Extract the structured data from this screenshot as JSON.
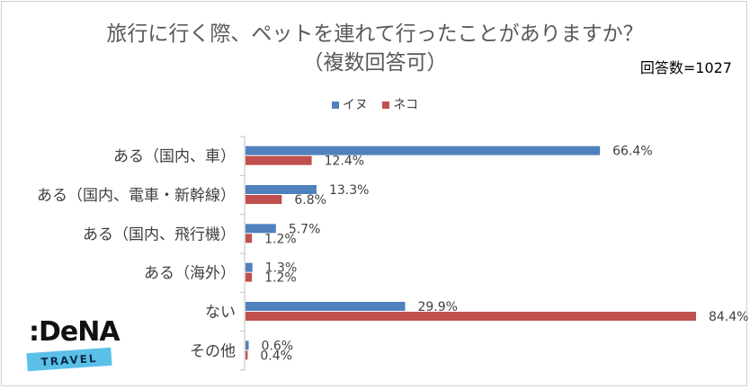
{
  "title_line1": "旅行に行く際、ペットを連れて行ったことがありますか？",
  "title_line2": "（複数回答可）",
  "note": "回答数=1027",
  "logo_text": "DeNA",
  "logo_band": "TRAVEL",
  "colors": {
    "dog": "#4f81bd",
    "cat": "#c0504d",
    "axis": "#bfbfbf"
  },
  "chart_data": {
    "type": "bar",
    "orientation": "horizontal",
    "title": "旅行に行く際、ペットを連れて行ったことがありますか？（複数回答可）",
    "categories": [
      "ある（国内、車）",
      "ある（国内、電車・新幹線）",
      "ある（国内、飛行機）",
      "ある（海外）",
      "ない",
      "その他"
    ],
    "series": [
      {
        "name": "イヌ",
        "values": [
          66.4,
          13.3,
          5.7,
          1.3,
          29.9,
          0.6
        ],
        "labels": [
          "66.4%",
          "13.3%",
          "5.7%",
          "1.3%",
          "29.9%",
          "0.6%"
        ]
      },
      {
        "name": "ネコ",
        "values": [
          12.4,
          6.8,
          1.2,
          1.2,
          84.4,
          0.4
        ],
        "labels": [
          "12.4%",
          "6.8%",
          "1.2%",
          "1.2%",
          "84.4%",
          "0.4%"
        ]
      }
    ],
    "xlim": [
      0,
      84.4
    ],
    "legend": "top-center",
    "grid": false
  }
}
